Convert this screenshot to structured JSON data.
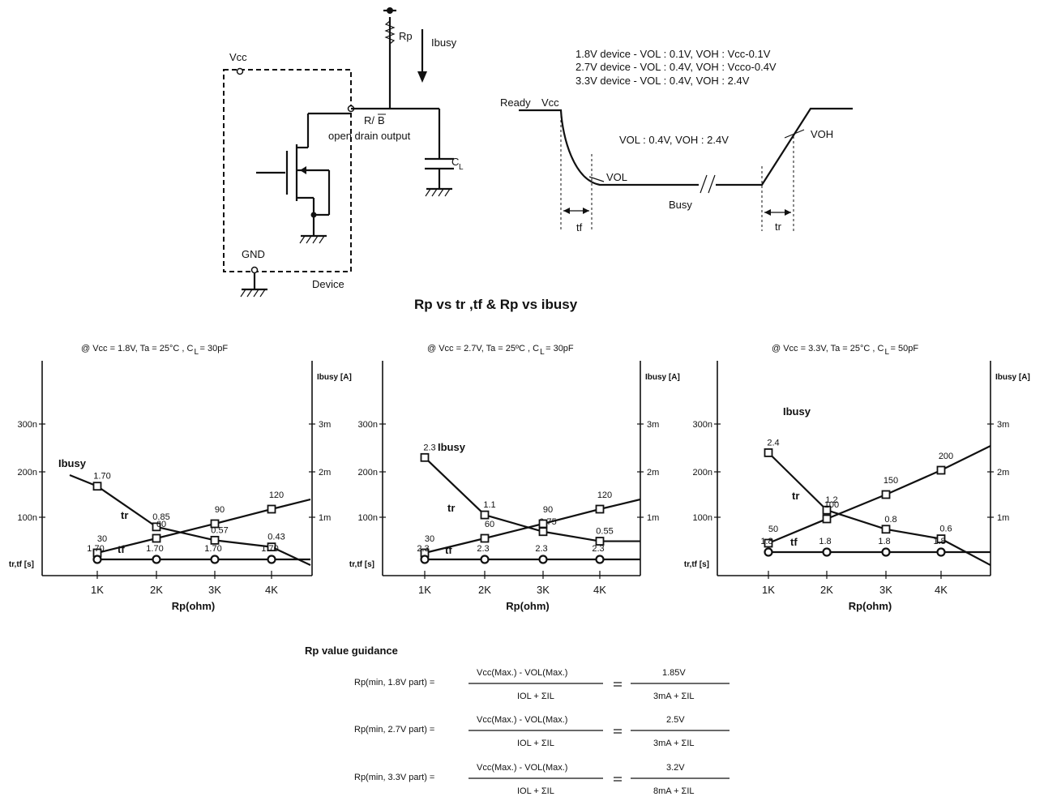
{
  "circuit": {
    "vcc": "Vcc",
    "gnd": "GND",
    "device": "Device",
    "rp": "Rp",
    "ibusy": "Ibusy",
    "rb_pre": "R/",
    "rb_bar": "B",
    "open_drain": "open drain output",
    "cl_main": "C",
    "cl_sub": "L"
  },
  "waveform": {
    "levels": [
      "1.8V device - VOL : 0.1V, VOH : Vcc-0.1V",
      "2.7V device - VOL : 0.4V,  VOH : Vcco-0.4V",
      "3.3V device - VOL : 0.4V,  VOH : 2.4V"
    ],
    "ready": "Ready",
    "vcc": "Vcc",
    "vol_voh": "VOL : 0.4V,  VOH : 2.4V",
    "vol": "VOL",
    "voh": "VOH",
    "busy": "Busy",
    "tf": "tf",
    "tr": "tr"
  },
  "section_title": "Rp vs tr ,tf  &  Rp vs ibusy",
  "chart_data": [
    {
      "type": "line",
      "title": "@ Vcc = 1.8V,  Ta = 25°C , C",
      "title_sub": "L",
      "title_tail": " = 30pF",
      "xlabel": "Rp(ohm)",
      "ylabel_left": "tr,tf [s]",
      "ylabel_right": "Ibusy [A]",
      "categories": [
        "1K",
        "2K",
        "3K",
        "4K"
      ],
      "left_ticks": [
        "100n",
        "200n",
        "300n"
      ],
      "right_ticks": [
        "1m",
        "2m",
        "3m"
      ],
      "series": [
        {
          "name": "Ibusy",
          "values": [
            1.7,
            0.85,
            0.57,
            0.43
          ],
          "labels": [
            "1.70",
            "0.85",
            "0.57",
            "0.43"
          ],
          "axis": "right",
          "end": 0.05
        },
        {
          "name": "tr",
          "values": [
            30,
            60,
            90,
            120
          ],
          "labels": [
            "30",
            "60",
            "90",
            "120"
          ],
          "axis": "left",
          "end": 140
        },
        {
          "name": "tf",
          "values": [
            1.7,
            1.7,
            1.7,
            1.7
          ],
          "labels": [
            "1.70",
            "1.70",
            "1.70",
            "1.70"
          ],
          "axis": "tf",
          "end": 1.7
        }
      ]
    },
    {
      "type": "line",
      "title": "@ Vcc = 2.7V,  Ta = 25ºC , C",
      "title_sub": "L",
      "title_tail": " = 30pF",
      "xlabel": "Rp(ohm)",
      "ylabel_left": "tr,tf [s]",
      "ylabel_right": "Ibusy [A]",
      "categories": [
        "1K",
        "2K",
        "3K",
        "4K"
      ],
      "left_ticks": [
        "100n",
        "200n",
        "300n"
      ],
      "right_ticks": [
        "1m",
        "2m",
        "3m"
      ],
      "series": [
        {
          "name": "Ibusy",
          "values": [
            2.3,
            1.1,
            0.75,
            0.55
          ],
          "labels": [
            "2.3",
            "1.1",
            "0.75",
            "0.55"
          ],
          "axis": "right",
          "end": 0.55
        },
        {
          "name": "tr",
          "values": [
            30,
            60,
            90,
            120
          ],
          "labels": [
            "30",
            "60",
            "90",
            "120"
          ],
          "axis": "left",
          "end": 140
        },
        {
          "name": "tf",
          "values": [
            2.3,
            2.3,
            2.3,
            2.3
          ],
          "labels": [
            "2.3",
            "2.3",
            "2.3",
            "2.3"
          ],
          "axis": "tf",
          "end": 2.3
        }
      ]
    },
    {
      "type": "line",
      "title": "@ Vcc = 3.3V,  Ta = 25°C , C",
      "title_sub": "L",
      "title_tail": " = 50pF",
      "xlabel": "Rp(ohm)",
      "ylabel_left": "tr,tf [s]",
      "ylabel_right": "Ibusy [A]",
      "categories": [
        "1K",
        "2K",
        "3K",
        "4K"
      ],
      "left_ticks": [
        "100n",
        "200n",
        "300n"
      ],
      "right_ticks": [
        "1m",
        "2m",
        "3m"
      ],
      "series": [
        {
          "name": "Ibusy",
          "values": [
            2.4,
            1.2,
            0.8,
            0.6
          ],
          "labels": [
            "2.4",
            "1.2",
            "0.8",
            "0.6"
          ],
          "axis": "right",
          "end": 0.05
        },
        {
          "name": "tr",
          "values": [
            50,
            100,
            150,
            200
          ],
          "labels": [
            "50",
            "100",
            "150",
            "200"
          ],
          "axis": "left",
          "end": 250
        },
        {
          "name": "tf",
          "values": [
            1.8,
            1.8,
            1.8,
            1.8
          ],
          "labels": [
            "1.8",
            "1.8",
            "1.8",
            "1.8"
          ],
          "axis": "tf",
          "end": 1.8
        }
      ]
    }
  ],
  "guidance": {
    "title": "Rp value guidance",
    "numerator": "Vcc(Max.) - VOL(Max.)",
    "denominator": "IOL + ΣIL",
    "rows": [
      {
        "label": "Rp(min, 1.8V part) =",
        "value": "1.85V",
        "value_den": "3mA + ΣIL"
      },
      {
        "label": "Rp(min, 2.7V part) =",
        "value": "2.5V",
        "value_den": "3mA + ΣIL"
      },
      {
        "label": "Rp(min, 3.3V part) =",
        "value": "3.2V",
        "value_den": "8mA + ΣIL"
      }
    ]
  }
}
